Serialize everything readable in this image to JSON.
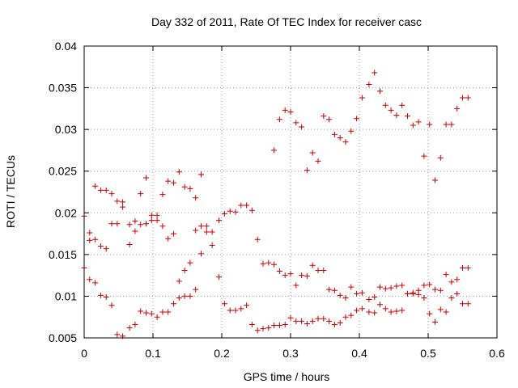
{
  "chart_data": {
    "type": "scatter",
    "title": "Day 332 of 2011, Rate Of TEC Index for receiver casc",
    "xlabel": "GPS time / hours",
    "ylabel": "ROTI / TECUs",
    "xlim": [
      0,
      0.6
    ],
    "ylim": [
      0.005,
      0.04
    ],
    "x_ticks": [
      {
        "value": 0,
        "label": "0"
      },
      {
        "value": 0.1,
        "label": "0.1"
      },
      {
        "value": 0.2,
        "label": "0.2"
      },
      {
        "value": 0.3,
        "label": "0.3"
      },
      {
        "value": 0.4,
        "label": "0.4"
      },
      {
        "value": 0.5,
        "label": "0.5"
      },
      {
        "value": 0.6,
        "label": "0.6"
      }
    ],
    "y_ticks": [
      {
        "value": 0.005,
        "label": "0.005"
      },
      {
        "value": 0.01,
        "label": "0.01"
      },
      {
        "value": 0.015,
        "label": "0.015"
      },
      {
        "value": 0.02,
        "label": "0.02"
      },
      {
        "value": 0.025,
        "label": "0.025"
      },
      {
        "value": 0.03,
        "label": "0.03"
      },
      {
        "value": 0.035,
        "label": "0.035"
      },
      {
        "value": 0.04,
        "label": "0.04"
      }
    ],
    "grid": true,
    "marker": "plus",
    "marker_color": "#cc0000",
    "series": [
      {
        "name": "ROTI",
        "points": [
          [
            0.0,
            0.0196
          ],
          [
            0.0,
            0.0134
          ],
          [
            0.008,
            0.0176
          ],
          [
            0.008,
            0.0167
          ],
          [
            0.008,
            0.012
          ],
          [
            0.016,
            0.0232
          ],
          [
            0.016,
            0.0168
          ],
          [
            0.016,
            0.0116
          ],
          [
            0.024,
            0.0227
          ],
          [
            0.024,
            0.016
          ],
          [
            0.024,
            0.0101
          ],
          [
            0.032,
            0.0227
          ],
          [
            0.032,
            0.0157
          ],
          [
            0.032,
            0.0099
          ],
          [
            0.04,
            0.0223
          ],
          [
            0.04,
            0.0187
          ],
          [
            0.04,
            0.0089
          ],
          [
            0.048,
            0.0214
          ],
          [
            0.048,
            0.0187
          ],
          [
            0.048,
            0.0054
          ],
          [
            0.056,
            0.0213
          ],
          [
            0.056,
            0.0207
          ],
          [
            0.056,
            0.0052
          ],
          [
            0.066,
            0.0186
          ],
          [
            0.066,
            0.0162
          ],
          [
            0.066,
            0.0062
          ],
          [
            0.074,
            0.019
          ],
          [
            0.074,
            0.0178
          ],
          [
            0.074,
            0.0066
          ],
          [
            0.082,
            0.0223
          ],
          [
            0.082,
            0.0186
          ],
          [
            0.082,
            0.0082
          ],
          [
            0.09,
            0.0242
          ],
          [
            0.09,
            0.0187
          ],
          [
            0.09,
            0.008
          ],
          [
            0.098,
            0.0197
          ],
          [
            0.098,
            0.0191
          ],
          [
            0.098,
            0.0079
          ],
          [
            0.106,
            0.0197
          ],
          [
            0.106,
            0.0191
          ],
          [
            0.106,
            0.0075
          ],
          [
            0.114,
            0.0222
          ],
          [
            0.114,
            0.0184
          ],
          [
            0.114,
            0.0081
          ],
          [
            0.122,
            0.0238
          ],
          [
            0.122,
            0.0169
          ],
          [
            0.122,
            0.0081
          ],
          [
            0.13,
            0.0236
          ],
          [
            0.13,
            0.0175
          ],
          [
            0.13,
            0.0091
          ],
          [
            0.138,
            0.0249
          ],
          [
            0.138,
            0.0118
          ],
          [
            0.138,
            0.0098
          ],
          [
            0.146,
            0.0231
          ],
          [
            0.146,
            0.0131
          ],
          [
            0.146,
            0.01
          ],
          [
            0.154,
            0.0229
          ],
          [
            0.154,
            0.014
          ],
          [
            0.154,
            0.01
          ],
          [
            0.162,
            0.0218
          ],
          [
            0.162,
            0.0179
          ],
          [
            0.162,
            0.0108
          ],
          [
            0.17,
            0.0246
          ],
          [
            0.17,
            0.0184
          ],
          [
            0.17,
            0.0151
          ],
          [
            0.178,
            0.0184
          ],
          [
            0.178,
            0.0177
          ],
          [
            0.186,
            0.0177
          ],
          [
            0.186,
            0.0161
          ],
          [
            0.196,
            0.0191
          ],
          [
            0.196,
            0.0123
          ],
          [
            0.204,
            0.0199
          ],
          [
            0.204,
            0.0091
          ],
          [
            0.212,
            0.0202
          ],
          [
            0.212,
            0.0083
          ],
          [
            0.22,
            0.0201
          ],
          [
            0.22,
            0.0083
          ],
          [
            0.228,
            0.0209
          ],
          [
            0.228,
            0.0085
          ],
          [
            0.236,
            0.0209
          ],
          [
            0.236,
            0.0089
          ],
          [
            0.244,
            0.0203
          ],
          [
            0.244,
            0.0066
          ],
          [
            0.252,
            0.0168
          ],
          [
            0.252,
            0.0059
          ],
          [
            0.26,
            0.0139
          ],
          [
            0.26,
            0.0061
          ],
          [
            0.268,
            0.014
          ],
          [
            0.268,
            0.0062
          ],
          [
            0.276,
            0.0275
          ],
          [
            0.276,
            0.0138
          ],
          [
            0.276,
            0.0065
          ],
          [
            0.284,
            0.0312
          ],
          [
            0.284,
            0.013
          ],
          [
            0.284,
            0.0065
          ],
          [
            0.292,
            0.0323
          ],
          [
            0.292,
            0.0125
          ],
          [
            0.292,
            0.0066
          ],
          [
            0.3,
            0.0321
          ],
          [
            0.3,
            0.0127
          ],
          [
            0.3,
            0.0074
          ],
          [
            0.308,
            0.0308
          ],
          [
            0.308,
            0.0113
          ],
          [
            0.308,
            0.007
          ],
          [
            0.316,
            0.0303
          ],
          [
            0.316,
            0.0125
          ],
          [
            0.316,
            0.007
          ],
          [
            0.324,
            0.0251
          ],
          [
            0.324,
            0.0124
          ],
          [
            0.324,
            0.0067
          ],
          [
            0.332,
            0.0272
          ],
          [
            0.332,
            0.0137
          ],
          [
            0.332,
            0.007
          ],
          [
            0.34,
            0.0262
          ],
          [
            0.34,
            0.0131
          ],
          [
            0.34,
            0.0073
          ],
          [
            0.348,
            0.0316
          ],
          [
            0.348,
            0.0131
          ],
          [
            0.348,
            0.0073
          ],
          [
            0.356,
            0.0312
          ],
          [
            0.356,
            0.0108
          ],
          [
            0.356,
            0.007
          ],
          [
            0.364,
            0.0294
          ],
          [
            0.364,
            0.0107
          ],
          [
            0.364,
            0.0066
          ],
          [
            0.372,
            0.029
          ],
          [
            0.372,
            0.0101
          ],
          [
            0.372,
            0.0068
          ],
          [
            0.38,
            0.0285
          ],
          [
            0.38,
            0.0098
          ],
          [
            0.38,
            0.0075
          ],
          [
            0.388,
            0.0298
          ],
          [
            0.388,
            0.0111
          ],
          [
            0.388,
            0.0077
          ],
          [
            0.396,
            0.0313
          ],
          [
            0.396,
            0.0103
          ],
          [
            0.396,
            0.0083
          ],
          [
            0.404,
            0.0338
          ],
          [
            0.404,
            0.0104
          ],
          [
            0.404,
            0.0085
          ],
          [
            0.414,
            0.0354
          ],
          [
            0.414,
            0.0096
          ],
          [
            0.414,
            0.0081
          ],
          [
            0.422,
            0.0368
          ],
          [
            0.422,
            0.0099
          ],
          [
            0.422,
            0.008
          ],
          [
            0.43,
            0.0346
          ],
          [
            0.43,
            0.0111
          ],
          [
            0.43,
            0.009
          ],
          [
            0.438,
            0.0329
          ],
          [
            0.438,
            0.0109
          ],
          [
            0.438,
            0.0085
          ],
          [
            0.446,
            0.0323
          ],
          [
            0.446,
            0.011
          ],
          [
            0.446,
            0.0081
          ],
          [
            0.454,
            0.0317
          ],
          [
            0.454,
            0.0112
          ],
          [
            0.454,
            0.0082
          ],
          [
            0.462,
            0.0329
          ],
          [
            0.462,
            0.0113
          ],
          [
            0.462,
            0.0083
          ],
          [
            0.47,
            0.0316
          ],
          [
            0.47,
            0.0103
          ],
          [
            0.47,
            0.0103
          ],
          [
            0.478,
            0.0305
          ],
          [
            0.478,
            0.0104
          ],
          [
            0.478,
            0.0103
          ],
          [
            0.486,
            0.0309
          ],
          [
            0.486,
            0.0107
          ],
          [
            0.486,
            0.0102
          ],
          [
            0.494,
            0.0268
          ],
          [
            0.494,
            0.0113
          ],
          [
            0.494,
            0.0098
          ],
          [
            0.502,
            0.0306
          ],
          [
            0.502,
            0.0114
          ],
          [
            0.502,
            0.0079
          ],
          [
            0.51,
            0.0239
          ],
          [
            0.51,
            0.0108
          ],
          [
            0.51,
            0.0069
          ],
          [
            0.518,
            0.0266
          ],
          [
            0.518,
            0.0107
          ],
          [
            0.518,
            0.0084
          ],
          [
            0.526,
            0.0306
          ],
          [
            0.526,
            0.0126
          ],
          [
            0.526,
            0.0081
          ],
          [
            0.534,
            0.0306
          ],
          [
            0.534,
            0.0117
          ],
          [
            0.534,
            0.0098
          ],
          [
            0.542,
            0.0325
          ],
          [
            0.542,
            0.012
          ],
          [
            0.542,
            0.0103
          ],
          [
            0.55,
            0.0338
          ],
          [
            0.55,
            0.0134
          ],
          [
            0.55,
            0.0091
          ],
          [
            0.558,
            0.0338
          ],
          [
            0.558,
            0.0134
          ],
          [
            0.558,
            0.0091
          ]
        ]
      }
    ]
  }
}
